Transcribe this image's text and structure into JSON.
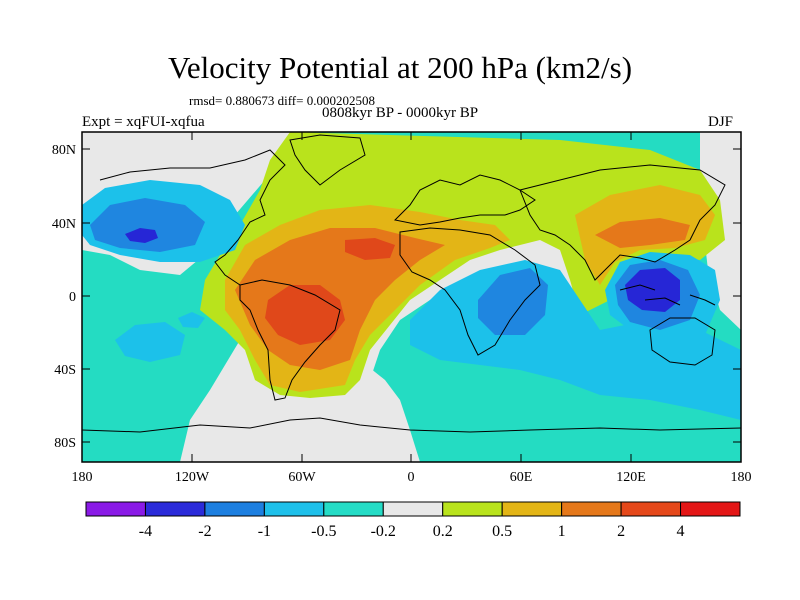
{
  "title": "Velocity Potential at 200 hPa (km2/s)",
  "rmsd_text": "rmsd= 0.880673 diff= 0.000202508",
  "subtitle": "0808kyr BP - 0000kyr BP",
  "left_label": "Expt = xqFUI-xqfua",
  "right_label": "DJF",
  "y_ticks": [
    "80N",
    "40N",
    "0",
    "40S",
    "80S"
  ],
  "x_ticks": [
    "180",
    "120W",
    "60W",
    "0",
    "60E",
    "120E",
    "180"
  ],
  "colorbar": {
    "labels": [
      "-4",
      "-2",
      "-1",
      "-0.5",
      "-0.2",
      "0.2",
      "0.5",
      "1",
      "2",
      "4"
    ],
    "colors": [
      "#8a1ae6",
      "#2b2bd9",
      "#1d7fe0",
      "#1ec0ea",
      "#25dcc6",
      "#e8e8e8",
      "#b9e31c",
      "#e3b516",
      "#e5781a",
      "#e5481a",
      "#e31616"
    ]
  },
  "colors": {
    "neg_strong": "#2626d6",
    "neg_mid": "#1f86e0",
    "neg_weak": "#1cc1ea",
    "neg_light": "#24dcc2",
    "neutral": "#e8e8e8",
    "pos_light": "#b9e31c",
    "pos_weak": "#e3b516",
    "pos_mid": "#e5781a",
    "pos_strong": "#e0481a"
  }
}
